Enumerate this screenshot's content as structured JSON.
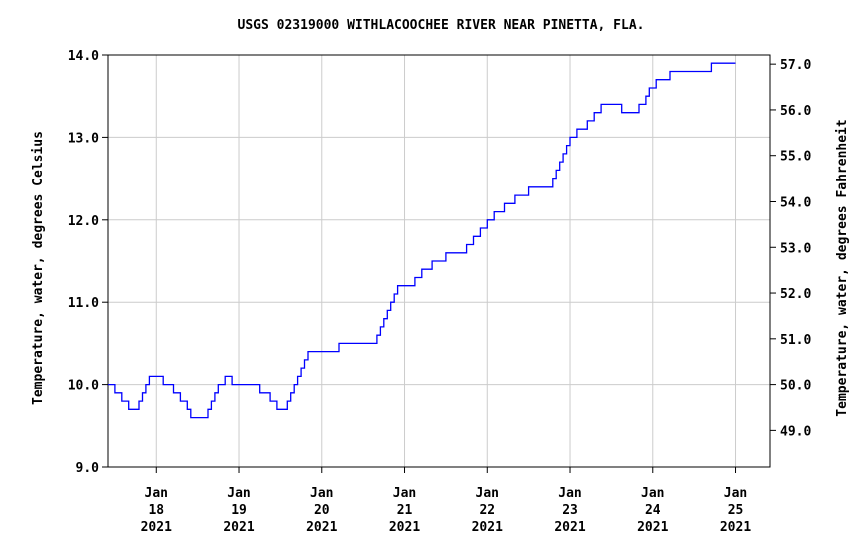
{
  "chart_data": {
    "type": "line",
    "title": "USGS 02319000 WITHLACOOCHEE RIVER NEAR PINETTA, FLA.",
    "ylabel": "Temperature, water, degrees Celsius",
    "ylabel_right": "Temperature, water, degrees Fahrenheit",
    "xlabel": "",
    "ylim": [
      9.0,
      14.0
    ],
    "xlim": [
      "2021-01-17T10:00",
      "2021-01-25T10:00"
    ],
    "grid": true,
    "line_color": "#0000ff",
    "y_ticks": [
      "9.0",
      "10.0",
      "11.0",
      "12.0",
      "13.0",
      "14.0"
    ],
    "y2_ticks": [
      "49.0",
      "50.0",
      "51.0",
      "52.0",
      "53.0",
      "54.0",
      "55.0",
      "56.0",
      "57.0"
    ],
    "x_ticks": [
      {
        "month": "Jan",
        "day": "18",
        "year": "2021"
      },
      {
        "month": "Jan",
        "day": "19",
        "year": "2021"
      },
      {
        "month": "Jan",
        "day": "20",
        "year": "2021"
      },
      {
        "month": "Jan",
        "day": "21",
        "year": "2021"
      },
      {
        "month": "Jan",
        "day": "22",
        "year": "2021"
      },
      {
        "month": "Jan",
        "day": "23",
        "year": "2021"
      },
      {
        "month": "Jan",
        "day": "24",
        "year": "2021"
      },
      {
        "month": "Jan",
        "day": "25",
        "year": "2021"
      }
    ],
    "series": [
      {
        "values": [
          [
            "2021-01-17T10:00",
            10.0
          ],
          [
            "2021-01-17T12:00",
            9.9
          ],
          [
            "2021-01-17T14:00",
            9.8
          ],
          [
            "2021-01-17T16:00",
            9.7
          ],
          [
            "2021-01-17T19:00",
            9.8
          ],
          [
            "2021-01-17T20:00",
            9.9
          ],
          [
            "2021-01-17T21:00",
            10.0
          ],
          [
            "2021-01-17T22:00",
            10.1
          ],
          [
            "2021-01-18T02:00",
            10.0
          ],
          [
            "2021-01-18T05:00",
            9.9
          ],
          [
            "2021-01-18T07:00",
            9.8
          ],
          [
            "2021-01-18T09:00",
            9.7
          ],
          [
            "2021-01-18T10:00",
            9.6
          ],
          [
            "2021-01-18T15:00",
            9.7
          ],
          [
            "2021-01-18T16:00",
            9.8
          ],
          [
            "2021-01-18T17:00",
            9.9
          ],
          [
            "2021-01-18T18:00",
            10.0
          ],
          [
            "2021-01-18T20:00",
            10.1
          ],
          [
            "2021-01-18T22:00",
            10.0
          ],
          [
            "2021-01-19T06:00",
            9.9
          ],
          [
            "2021-01-19T09:00",
            9.8
          ],
          [
            "2021-01-19T11:00",
            9.7
          ],
          [
            "2021-01-19T14:00",
            9.8
          ],
          [
            "2021-01-19T15:00",
            9.9
          ],
          [
            "2021-01-19T16:00",
            10.0
          ],
          [
            "2021-01-19T17:00",
            10.1
          ],
          [
            "2021-01-19T18:00",
            10.2
          ],
          [
            "2021-01-19T19:00",
            10.3
          ],
          [
            "2021-01-19T20:00",
            10.4
          ],
          [
            "2021-01-20T05:00",
            10.5
          ],
          [
            "2021-01-20T16:00",
            10.6
          ],
          [
            "2021-01-20T17:00",
            10.7
          ],
          [
            "2021-01-20T18:00",
            10.8
          ],
          [
            "2021-01-20T19:00",
            10.9
          ],
          [
            "2021-01-20T20:00",
            11.0
          ],
          [
            "2021-01-20T21:00",
            11.1
          ],
          [
            "2021-01-20T22:00",
            11.2
          ],
          [
            "2021-01-21T03:00",
            11.3
          ],
          [
            "2021-01-21T05:00",
            11.4
          ],
          [
            "2021-01-21T08:00",
            11.5
          ],
          [
            "2021-01-21T12:00",
            11.6
          ],
          [
            "2021-01-21T18:00",
            11.7
          ],
          [
            "2021-01-21T20:00",
            11.8
          ],
          [
            "2021-01-21T22:00",
            11.9
          ],
          [
            "2021-01-22T00:00",
            12.0
          ],
          [
            "2021-01-22T02:00",
            12.1
          ],
          [
            "2021-01-22T05:00",
            12.2
          ],
          [
            "2021-01-22T08:00",
            12.3
          ],
          [
            "2021-01-22T12:00",
            12.4
          ],
          [
            "2021-01-22T19:00",
            12.5
          ],
          [
            "2021-01-22T20:00",
            12.6
          ],
          [
            "2021-01-22T21:00",
            12.7
          ],
          [
            "2021-01-22T22:00",
            12.8
          ],
          [
            "2021-01-22T23:00",
            12.9
          ],
          [
            "2021-01-23T00:00",
            13.0
          ],
          [
            "2021-01-23T02:00",
            13.1
          ],
          [
            "2021-01-23T05:00",
            13.2
          ],
          [
            "2021-01-23T07:00",
            13.3
          ],
          [
            "2021-01-23T09:00",
            13.4
          ],
          [
            "2021-01-23T15:00",
            13.3
          ],
          [
            "2021-01-23T20:00",
            13.4
          ],
          [
            "2021-01-23T22:00",
            13.5
          ],
          [
            "2021-01-23T23:00",
            13.6
          ],
          [
            "2021-01-24T01:00",
            13.7
          ],
          [
            "2021-01-24T05:00",
            13.8
          ],
          [
            "2021-01-24T17:00",
            13.9
          ],
          [
            "2021-01-25T00:00",
            13.9
          ]
        ]
      }
    ]
  }
}
